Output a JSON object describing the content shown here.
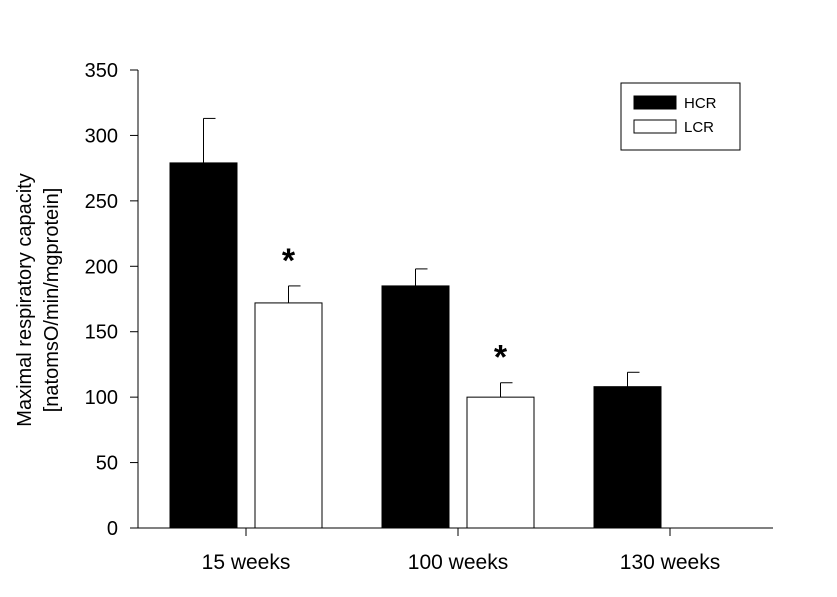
{
  "chart_data": {
    "type": "bar",
    "title": "",
    "xlabel": "",
    "ylabel_lines": [
      "Maximal respiratory capacity",
      "[natomsO/min/mgprotein]"
    ],
    "ylim": [
      0,
      350
    ],
    "yticks": [
      0,
      50,
      100,
      150,
      200,
      250,
      300,
      350
    ],
    "ytick_labels": [
      "0",
      "50",
      "100",
      "150",
      "200",
      "250",
      "300",
      "350"
    ],
    "categories": [
      "15 weeks",
      "100 weeks",
      "130 weeks"
    ],
    "series": [
      {
        "name": "HCR",
        "color": "#000000",
        "values": [
          279,
          185,
          108
        ],
        "errors": [
          34,
          13,
          11
        ]
      },
      {
        "name": "LCR",
        "color": "#ffffff",
        "values": [
          172,
          100,
          null
        ],
        "errors": [
          13,
          11,
          null
        ]
      }
    ],
    "significance_markers": [
      {
        "series": "LCR",
        "category": "15 weeks",
        "label": "*"
      },
      {
        "series": "LCR",
        "category": "100 weeks",
        "label": "*"
      }
    ],
    "legend": {
      "position": "top-right"
    },
    "grid": false
  }
}
